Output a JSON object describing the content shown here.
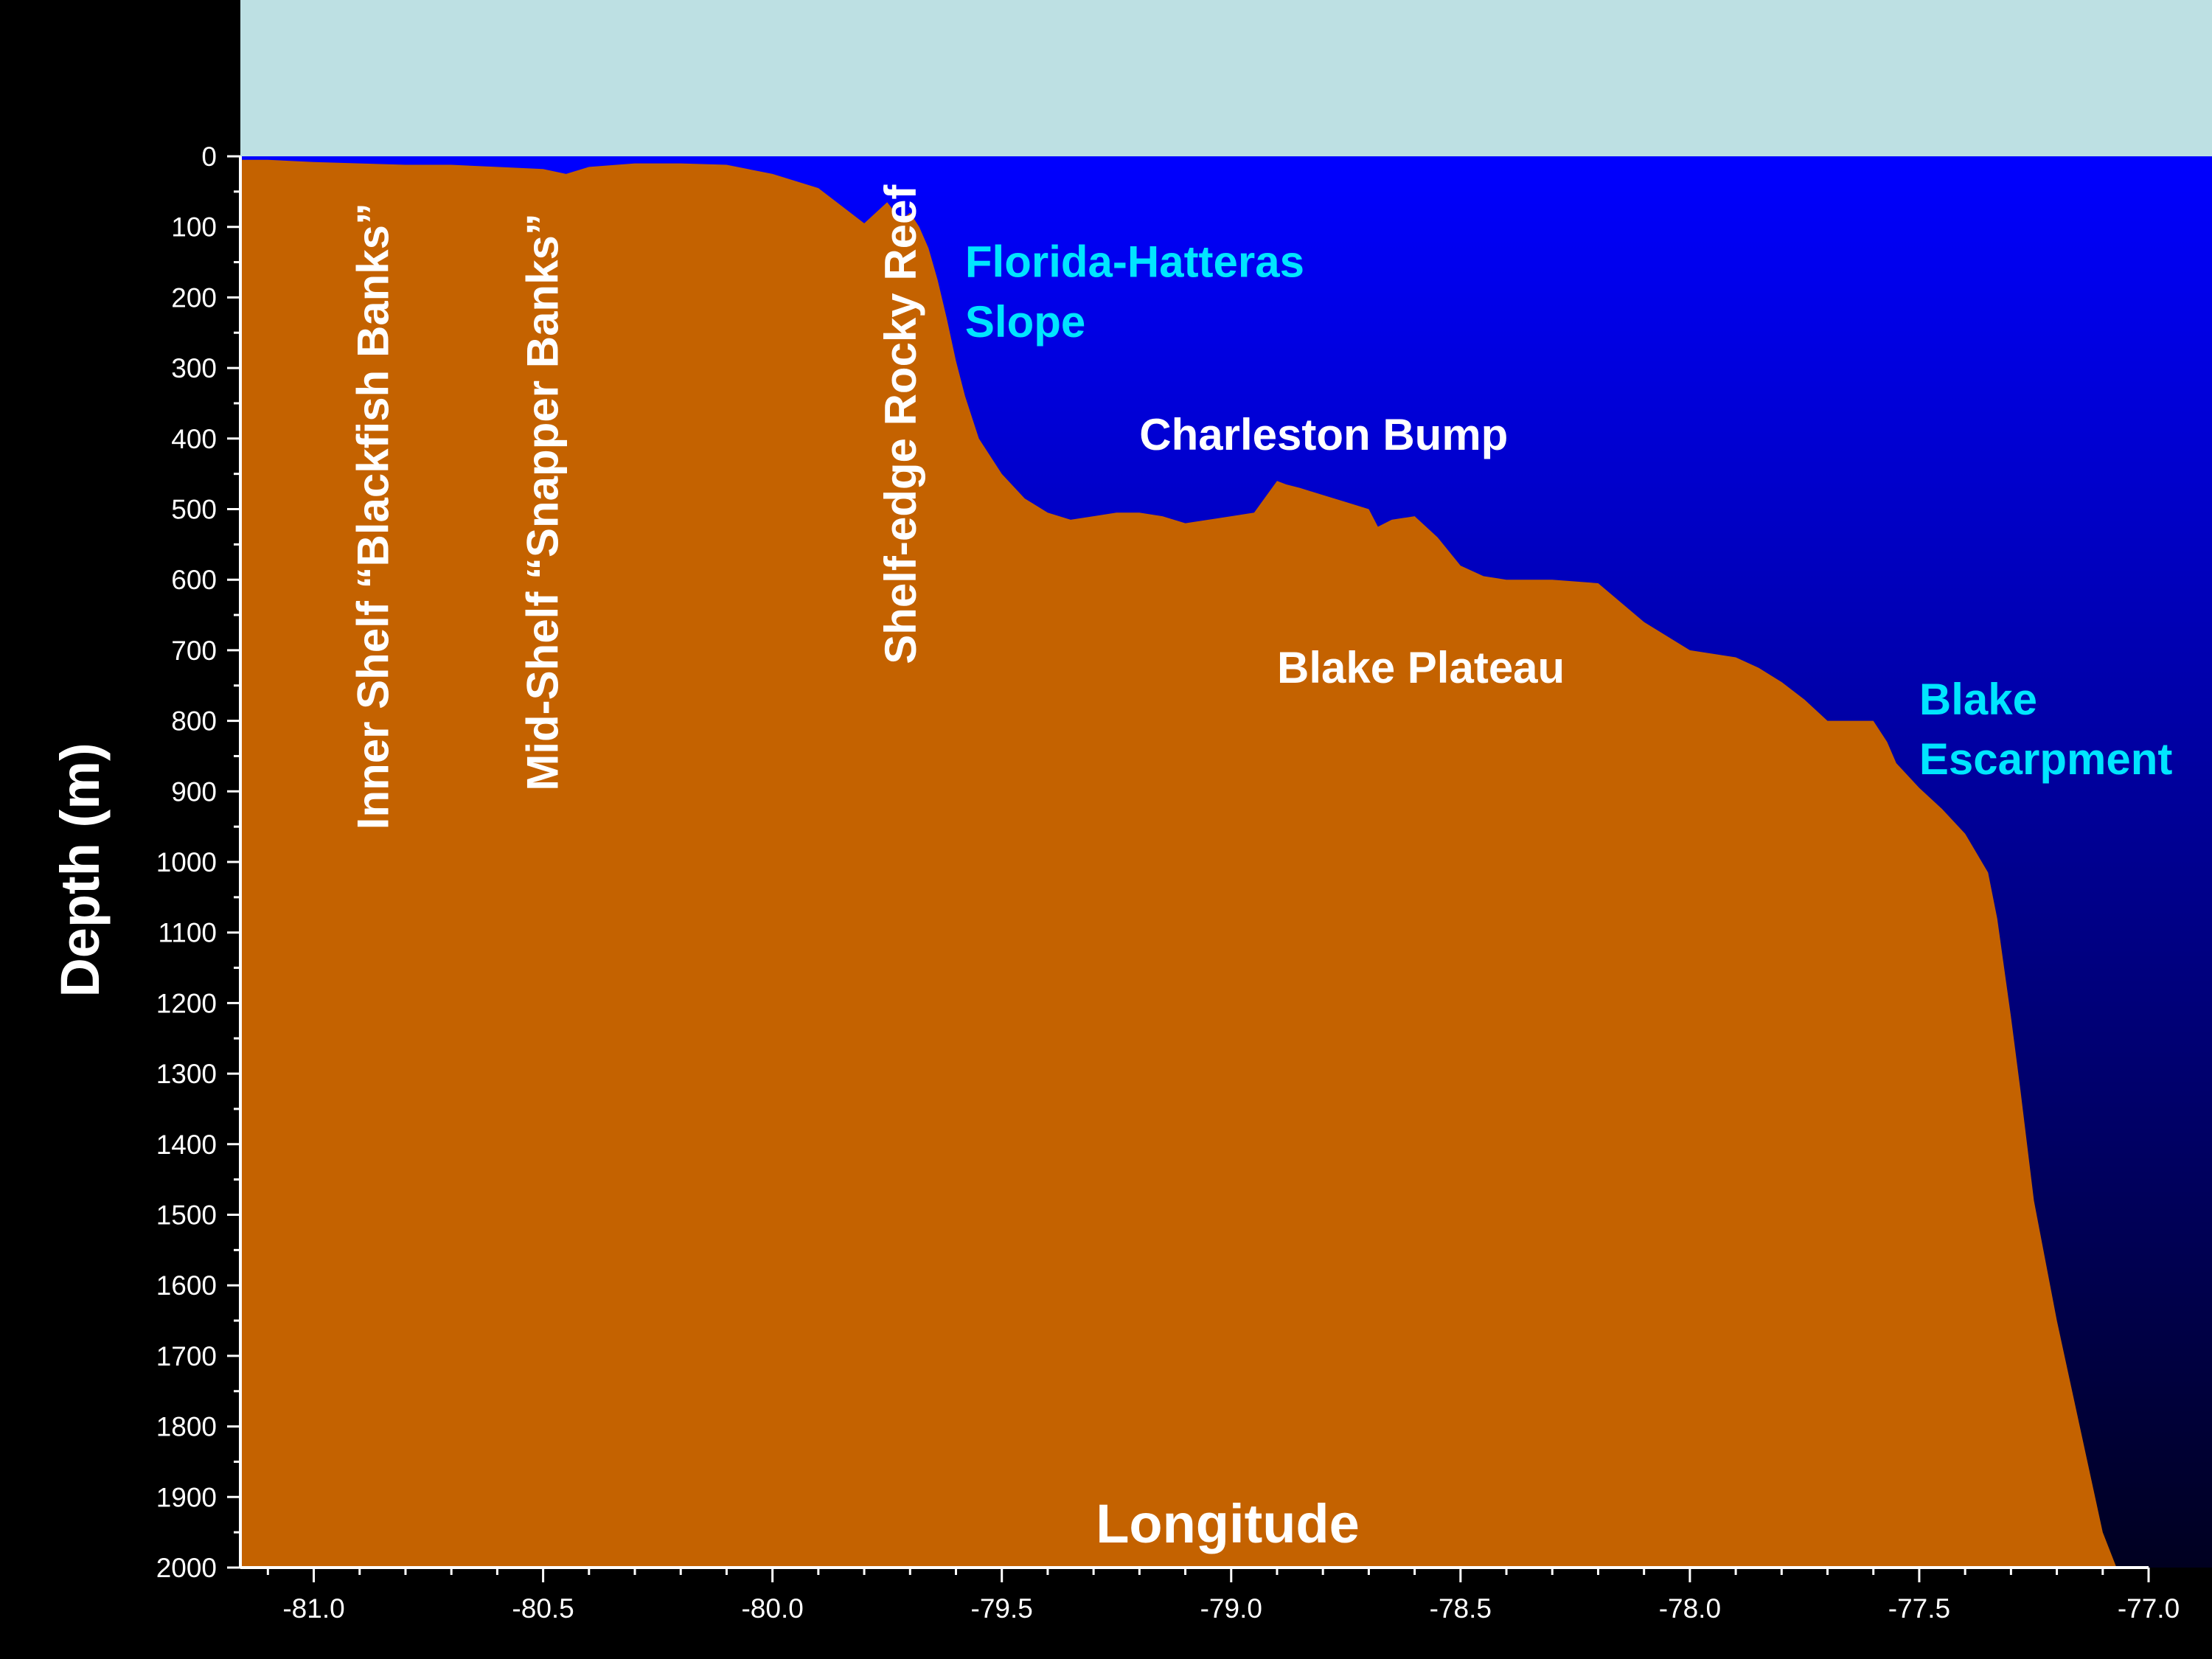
{
  "chart_data": {
    "type": "area",
    "title": "",
    "xlabel": "Longitude",
    "ylabel": "Depth (m)",
    "xlim": [
      -81.16,
      -77.0
    ],
    "ylim": [
      0,
      2000
    ],
    "y_inverted": true,
    "x_ticks": [
      "-81.0",
      "-80.5",
      "-80.0",
      "-79.5",
      "-79.0",
      "-78.5",
      "-78.0",
      "-77.5",
      "-77.0"
    ],
    "y_ticks": [
      "0",
      "100",
      "200",
      "300",
      "400",
      "500",
      "600",
      "700",
      "800",
      "900",
      "1000",
      "1100",
      "1200",
      "1300",
      "1400",
      "1500",
      "1600",
      "1700",
      "1800",
      "1900",
      "2000"
    ],
    "grid": false,
    "colors": {
      "seafloor": "#c46200",
      "water_top": "#0000ff",
      "water_bottom": "#000020",
      "sky": "#bde0e3",
      "background": "#000000",
      "axis": "#ffffff",
      "label_white": "#ffffff",
      "label_cyan": "#00e5ff"
    },
    "series": [
      {
        "x": [
          -81.16,
          -81.1,
          -81.0,
          -80.9,
          -80.8,
          -80.7,
          -80.6,
          -80.5,
          -80.45,
          -80.4,
          -80.3,
          -80.2,
          -80.1,
          -80.0,
          -79.9,
          -79.8,
          -79.75,
          -79.72,
          -79.7,
          -79.68,
          -79.66,
          -79.64,
          -79.62,
          -79.6,
          -79.58,
          -79.55,
          -79.5,
          -79.45,
          -79.4,
          -79.35,
          -79.3,
          -79.25,
          -79.2,
          -79.15,
          -79.1,
          -79.05,
          -79.0,
          -78.95,
          -78.9,
          -78.88,
          -78.85,
          -78.8,
          -78.75,
          -78.7,
          -78.68,
          -78.65,
          -78.6,
          -78.55,
          -78.5,
          -78.45,
          -78.4,
          -78.3,
          -78.2,
          -78.1,
          -78.0,
          -77.9,
          -77.85,
          -77.8,
          -77.75,
          -77.7,
          -77.65,
          -77.6,
          -77.57,
          -77.55,
          -77.5,
          -77.45,
          -77.4,
          -77.35,
          -77.33,
          -77.3,
          -77.28,
          -77.25,
          -77.2,
          -77.15,
          -77.1,
          -77.07
        ],
        "depth": [
          5,
          5,
          8,
          10,
          12,
          12,
          15,
          18,
          25,
          15,
          10,
          10,
          12,
          25,
          45,
          95,
          65,
          90,
          80,
          100,
          130,
          175,
          230,
          290,
          340,
          400,
          450,
          485,
          505,
          515,
          510,
          505,
          505,
          510,
          520,
          515,
          510,
          505,
          460,
          465,
          470,
          480,
          490,
          500,
          525,
          515,
          510,
          540,
          580,
          595,
          600,
          600,
          605,
          660,
          700,
          710,
          725,
          745,
          770,
          800,
          800,
          800,
          830,
          860,
          895,
          925,
          960,
          1015,
          1080,
          1220,
          1320,
          1480,
          1650,
          1800,
          1950,
          2000
        ]
      }
    ],
    "annotations": [
      {
        "text": "Inner Shelf “Blackfish Banks”",
        "x": -80.87,
        "y": 510,
        "orientation": "vertical",
        "color": "white"
      },
      {
        "text": "Mid-Shelf  “Snapper Banks”",
        "x": -80.5,
        "y": 490,
        "orientation": "vertical",
        "color": "white"
      },
      {
        "text": "Shelf-edge Rocky Reef",
        "x": -79.72,
        "y": 380,
        "orientation": "vertical",
        "color": "white"
      },
      {
        "text": "Florida-Hatteras",
        "x": -79.58,
        "y": 150,
        "orientation": "horizontal",
        "color": "cyan"
      },
      {
        "text": "Slope",
        "x": -79.58,
        "y": 235,
        "orientation": "horizontal",
        "color": "cyan"
      },
      {
        "text": "Charleston Bump",
        "x": -79.2,
        "y": 395,
        "orientation": "horizontal",
        "color": "white"
      },
      {
        "text": "Blake Plateau",
        "x": -78.9,
        "y": 725,
        "orientation": "horizontal",
        "color": "white"
      },
      {
        "text": "Blake",
        "x": -77.5,
        "y": 770,
        "orientation": "horizontal",
        "color": "cyan"
      },
      {
        "text": "Escarpment",
        "x": -77.5,
        "y": 855,
        "orientation": "horizontal",
        "color": "cyan"
      }
    ]
  }
}
